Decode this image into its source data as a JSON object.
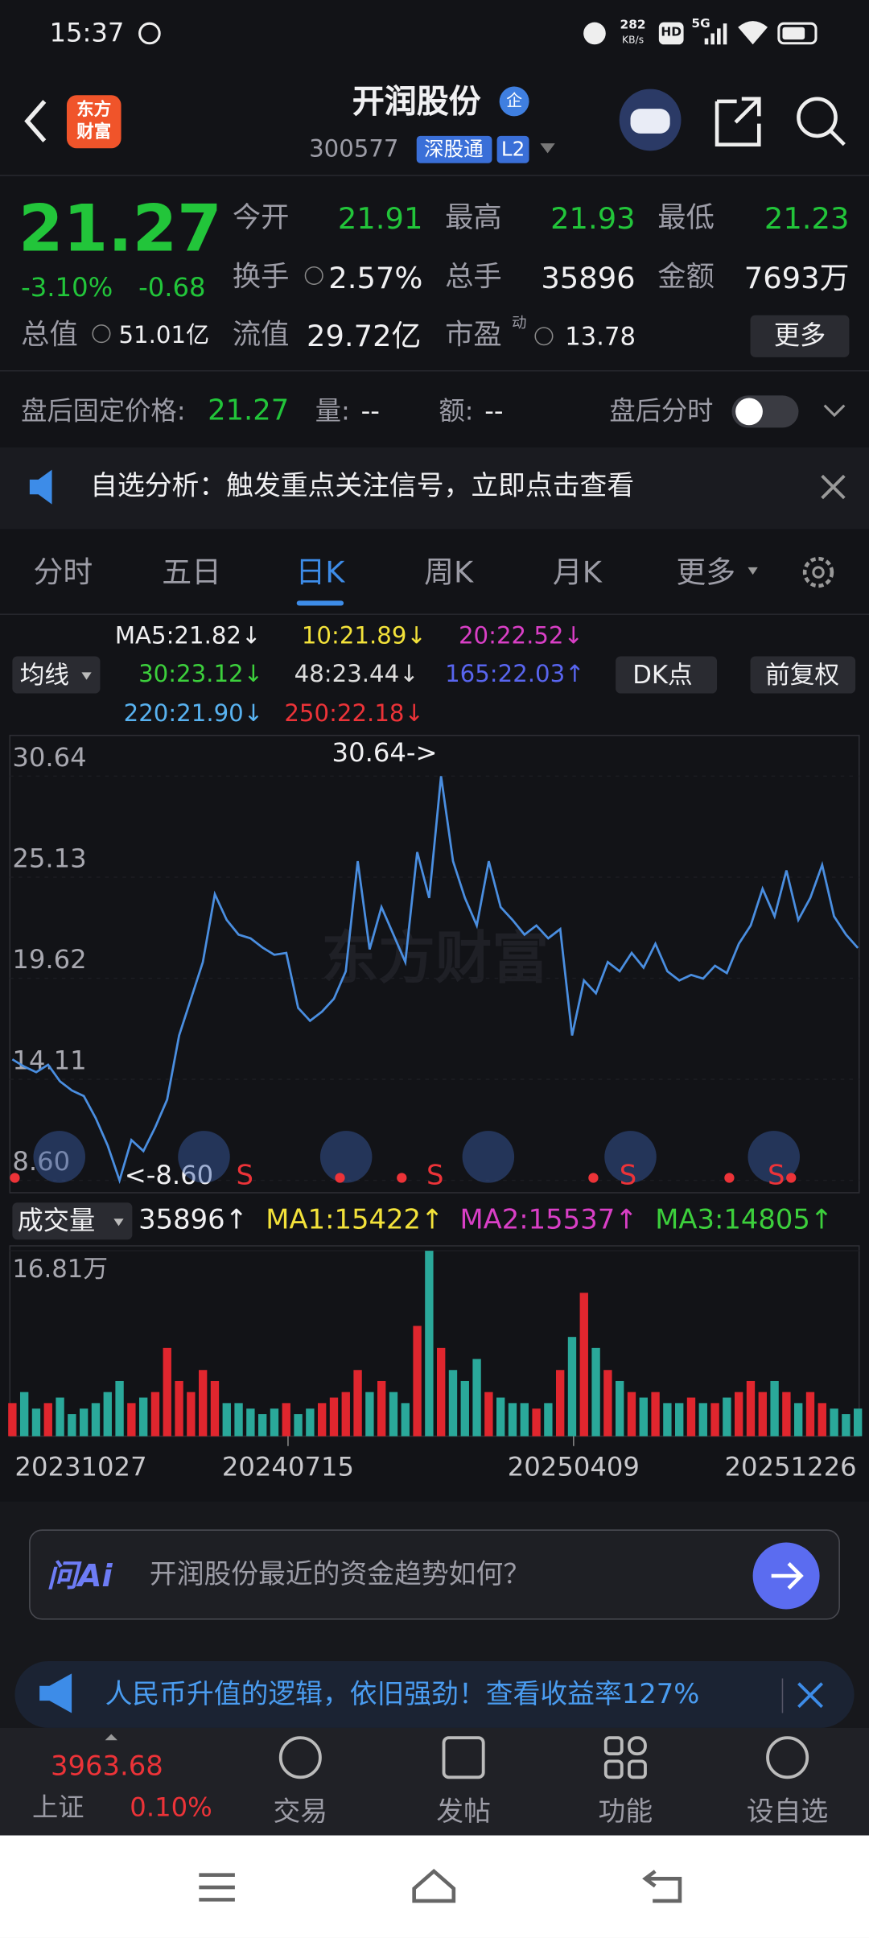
{
  "status_bar": {
    "time": "15:37",
    "speed": "282",
    "speed_unit": "KB/s",
    "hd": "HD",
    "network": "5G"
  },
  "header": {
    "logo": [
      "东方",
      "财富"
    ],
    "title": "开润股份",
    "badge": "企",
    "code": "300577",
    "connect": "深股通",
    "level": "L2"
  },
  "quote": {
    "price": "21.27",
    "change_pct": "-3.10%",
    "change": "-0.68",
    "fields": [
      {
        "label": "今开",
        "value": "21.91"
      },
      {
        "label": "最高",
        "value": "21.93"
      },
      {
        "label": "最低",
        "value": "21.23"
      },
      {
        "label": "换手",
        "value": "2.57%"
      },
      {
        "label": "总手",
        "value": "35896"
      },
      {
        "label": "金额",
        "value": "7693万"
      },
      {
        "label": "总值",
        "value": "51.01亿"
      },
      {
        "label": "流值",
        "value": "29.72亿"
      },
      {
        "label": "市盈",
        "sup": "动",
        "value": "13.78"
      }
    ],
    "more": "更多"
  },
  "after_hours": {
    "label": "盘后固定价格:",
    "price": "21.27",
    "volume_label": "量:",
    "volume": "--",
    "amount_label": "额:",
    "amount": "--",
    "toggle_label": "盘后分时"
  },
  "notice": {
    "text": "自选分析：触发重点关注信号，立即点击查看"
  },
  "tabs": [
    "分时",
    "五日",
    "日K",
    "周K",
    "月K",
    "更多"
  ],
  "indicators": {
    "selector": "均线",
    "ma": [
      {
        "text": "MA5:21.82↓",
        "color": "#f0f0f2"
      },
      {
        "text": "10:21.89↓",
        "color": "#f3e23a"
      },
      {
        "text": "20:22.52↓",
        "color": "#d93fc6"
      },
      {
        "text": "30:23.12↓",
        "color": "#3ccf3c"
      },
      {
        "text": "48:23.44↓",
        "color": "#dcdcdc"
      },
      {
        "text": "165:22.03↑",
        "color": "#5865ee"
      },
      {
        "text": "220:21.90↓",
        "color": "#58b2f0"
      },
      {
        "text": "250:22.18↓",
        "color": "#ec3338"
      }
    ],
    "dk": "DK点",
    "adjust": "前复权"
  },
  "price_chart": {
    "type": "line",
    "color": "#4a8ee0",
    "ylim": [
      8.6,
      30.64
    ],
    "yticks": [
      30.64,
      25.13,
      19.62,
      14.11,
      {
        "value": 8.6,
        "label": "8.60"
      }
    ],
    "values": [
      15.2,
      14.8,
      14.5,
      14.9,
      14.0,
      13.5,
      13.2,
      12.0,
      10.5,
      8.6,
      10.8,
      10.2,
      11.5,
      13.0,
      16.5,
      18.5,
      20.5,
      24.2,
      22.8,
      22.0,
      21.8,
      21.3,
      20.9,
      21.0,
      18.0,
      17.3,
      17.8,
      18.5,
      20.0,
      26.0,
      21.2,
      23.5,
      22.0,
      20.5,
      26.5,
      24.0,
      30.64,
      26.0,
      24.0,
      22.5,
      26.0,
      23.5,
      22.8,
      22.0,
      22.5,
      21.8,
      22.3,
      16.5,
      19.5,
      18.8,
      20.5,
      20.0,
      21.0,
      20.2,
      21.5,
      20.0,
      19.5,
      19.8,
      19.6,
      20.3,
      19.9,
      21.5,
      22.5,
      24.5,
      23.0,
      25.5,
      22.8,
      24.0,
      25.8,
      23.0,
      22.0,
      21.27
    ],
    "max_label": "30.64->",
    "min_label": "<-8.60",
    "signal": "S",
    "watermark": "东方财富"
  },
  "volume_chart": {
    "type": "bar",
    "title": "成交量",
    "latest": {
      "text": "35896↑",
      "color": "#f0f0f2"
    },
    "ma": [
      {
        "text": "MA1:15422↑",
        "color": "#f3e23a"
      },
      {
        "text": "MA2:15537↑",
        "color": "#d93fc6"
      },
      {
        "text": "MA3:14805↑",
        "color": "#3ccf3c"
      }
    ],
    "ylim": [
      0,
      16.81
    ],
    "yticks": [
      {
        "value": 16.81,
        "label": "16.81万"
      }
    ],
    "up_color": "#e0262e",
    "down_color": "#2aa89a",
    "values": [
      3,
      4,
      2.5,
      3,
      3.5,
      2,
      2.5,
      3,
      4,
      5,
      3,
      3.5,
      4,
      8,
      5,
      4,
      6,
      5,
      3,
      3,
      2.5,
      2,
      2.5,
      3,
      2,
      2.5,
      3,
      3.5,
      4,
      6,
      4,
      5,
      4,
      3,
      10,
      16.81,
      8,
      6,
      5,
      7,
      4,
      3.5,
      3,
      3,
      2.5,
      3,
      6,
      9,
      13,
      8,
      6,
      5,
      4,
      3.5,
      4,
      3,
      3,
      3.5,
      3,
      3,
      3.5,
      4,
      5,
      4,
      5,
      4,
      3,
      4,
      3,
      2.5,
      2,
      2.5
    ],
    "dates": [
      "20231027",
      "20240715",
      "20250409",
      "20251226"
    ]
  },
  "ai": {
    "logo": "问Ai",
    "prompt": "开润股份最近的资金趋势如何？"
  },
  "banner": {
    "text": "人民币升值的逻辑，依旧强劲！查看收益率127%"
  },
  "bottom_nav": {
    "index_value": "3963.68",
    "index_name": "上证",
    "index_change": "0.10%",
    "items": [
      "交易",
      "发帖",
      "功能",
      "设自选"
    ]
  }
}
